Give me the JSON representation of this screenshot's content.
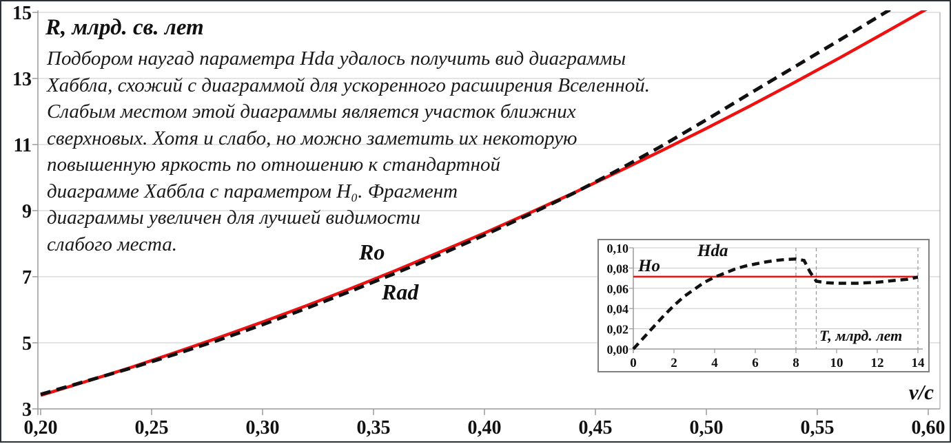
{
  "page": {
    "title": "R, млрд. св. лет",
    "annotation_lines": [
      "Подбором наугад параметра Hda удалось получить вид диаграммы",
      "Хаббла, схожий с диаграммой для ускоренного расширения Вселенной.",
      "Слабым местом этой диаграммы является участок ближних",
      "сверхновых. Хотя и слабо, но можно заметить их некоторую",
      "повышенную яркость по отношению к стандартной",
      "диаграмме Хаббла с параметром H₀. Фрагмент",
      "диаграммы увеличен для лучшей видимости",
      "слабого места."
    ]
  },
  "colors": {
    "ro_red": "#ee1111",
    "rad_black": "#111111",
    "gridline": "#c8c8c8",
    "axis": "#9a9a9a",
    "inset_border": "#7f7f7f",
    "inset_vline": "#999999"
  },
  "chart_data": [
    {
      "id": "main-hubble",
      "type": "line",
      "title": "",
      "xlabel": "v/c",
      "ylabel": "R, млрд. св. лет",
      "xlim": [
        0.2,
        0.6
      ],
      "ylim": [
        3,
        15
      ],
      "grid": "horizontal",
      "legend_position": "inline-labels",
      "x_ticks": [
        0.2,
        0.25,
        0.3,
        0.35,
        0.4,
        0.45,
        0.5,
        0.55,
        0.6
      ],
      "x_tick_labels": [
        "0,20",
        "0,25",
        "0,30",
        "0,35",
        "0,40",
        "0,45",
        "0,50",
        "0,55",
        "0,60"
      ],
      "y_ticks": [
        15,
        13,
        11,
        9,
        7,
        5,
        3
      ],
      "y_tick_labels": [
        "15",
        "13",
        "11",
        "9",
        "7",
        "5",
        "3"
      ],
      "x": [
        0.2,
        0.22,
        0.24,
        0.26,
        0.28,
        0.3,
        0.32,
        0.34,
        0.36,
        0.38,
        0.4,
        0.42,
        0.44,
        0.46,
        0.48,
        0.5,
        0.52,
        0.54,
        0.56,
        0.58,
        0.6
      ],
      "series": [
        {
          "name": "Ro",
          "color": "#ee1111",
          "line": "solid",
          "values": [
            3.41,
            3.82,
            4.24,
            4.69,
            5.15,
            5.63,
            6.13,
            6.65,
            7.19,
            7.75,
            8.32,
            8.92,
            9.53,
            10.17,
            10.82,
            11.49,
            12.18,
            12.89,
            13.62,
            14.37,
            15.13
          ]
        },
        {
          "name": "Rad",
          "color": "#111111",
          "line": "dashed",
          "values": [
            3.44,
            3.83,
            4.22,
            4.64,
            5.08,
            5.55,
            6.05,
            6.57,
            7.11,
            7.67,
            8.26,
            8.88,
            9.52,
            10.22,
            10.96,
            11.75,
            12.56,
            13.36,
            14.16,
            14.97,
            15.79
          ]
        }
      ]
    },
    {
      "id": "inset-hubble-parameter",
      "type": "line",
      "title": "",
      "xlabel": "Т, млрд. лет",
      "ylabel": "",
      "xlim": [
        0,
        14
      ],
      "ylim": [
        0,
        0.1
      ],
      "grid": "horizontal",
      "vlines_dashed": [
        8,
        9,
        14
      ],
      "x_ticks": [
        0,
        2,
        4,
        6,
        8,
        10,
        12,
        14
      ],
      "x_tick_labels": [
        "0",
        "2",
        "4",
        "6",
        "8",
        "10",
        "12",
        "14"
      ],
      "y_ticks": [
        0.0,
        0.02,
        0.04,
        0.06,
        0.08,
        0.1
      ],
      "y_tick_labels": [
        "0,00",
        "0,02",
        "0,04",
        "0,06",
        "0,08",
        "0,10"
      ],
      "series": [
        {
          "name": "Ho",
          "color": "#ee1111",
          "line": "solid",
          "type": "hline",
          "value": 0.0715
        },
        {
          "name": "Hda",
          "color": "#111111",
          "line": "dashed",
          "x": [
            0,
            0.5,
            1,
            1.5,
            2,
            2.5,
            3,
            3.5,
            4,
            4.5,
            5,
            5.5,
            6,
            6.5,
            7,
            7.5,
            8,
            8.4,
            8.7,
            9,
            9.5,
            10,
            10.5,
            11,
            11.5,
            12,
            12.5,
            13,
            13.5,
            14
          ],
          "values": [
            0.0,
            0.011,
            0.022,
            0.033,
            0.043,
            0.052,
            0.059,
            0.066,
            0.071,
            0.075,
            0.079,
            0.082,
            0.084,
            0.086,
            0.0875,
            0.0885,
            0.089,
            0.0875,
            0.076,
            0.067,
            0.0655,
            0.065,
            0.065,
            0.065,
            0.0655,
            0.066,
            0.067,
            0.068,
            0.069,
            0.071
          ]
        }
      ]
    }
  ]
}
